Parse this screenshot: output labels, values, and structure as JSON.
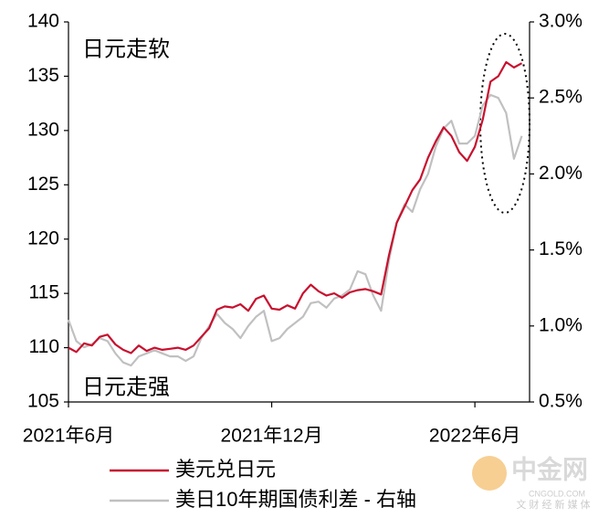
{
  "chart_data": {
    "type": "line",
    "annotations": [
      "日元走软",
      "日元走强"
    ],
    "watermark": [
      "中金网",
      "CNGOLD.COM",
      "文 财 经 新 媒 体"
    ],
    "categories": [
      "2021年6月",
      null,
      null,
      null,
      null,
      null,
      null,
      null,
      null,
      null,
      null,
      null,
      null,
      null,
      null,
      null,
      null,
      null,
      null,
      null,
      null,
      null,
      null,
      null,
      null,
      null,
      "2021年12月",
      null,
      null,
      null,
      null,
      null,
      null,
      null,
      null,
      null,
      null,
      null,
      null,
      null,
      null,
      null,
      null,
      null,
      null,
      null,
      null,
      null,
      null,
      null,
      null,
      null,
      "2022年6月",
      null,
      null,
      null,
      null,
      null,
      null
    ],
    "series": [
      {
        "name": "美元兑日元",
        "color": "#c8102e",
        "axis": "y",
        "values": [
          110.0,
          109.6,
          110.4,
          110.2,
          111.0,
          111.2,
          110.3,
          109.8,
          109.5,
          110.2,
          109.7,
          110.0,
          109.8,
          109.9,
          110.0,
          109.8,
          110.2,
          111.0,
          111.8,
          113.5,
          113.8,
          113.7,
          114.0,
          113.4,
          114.5,
          114.8,
          113.6,
          113.5,
          113.9,
          113.6,
          115.0,
          115.8,
          115.2,
          114.8,
          115.0,
          114.6,
          115.1,
          115.3,
          115.4,
          115.2,
          114.9,
          118.5,
          121.5,
          123.0,
          124.5,
          125.5,
          127.5,
          129.0,
          130.3,
          129.5,
          128.0,
          127.2,
          128.5,
          131.0,
          134.5,
          135.0,
          136.3,
          135.8,
          136.2
        ]
      },
      {
        "name": "美日10年期国债利差 - 右轴",
        "color": "#c0c0c0",
        "axis": "y2",
        "values": [
          1.04,
          0.9,
          0.86,
          0.88,
          0.92,
          0.9,
          0.82,
          0.76,
          0.74,
          0.8,
          0.82,
          0.84,
          0.82,
          0.8,
          0.8,
          0.77,
          0.8,
          0.92,
          1.0,
          1.08,
          1.02,
          0.98,
          0.92,
          1.0,
          1.06,
          1.1,
          0.9,
          0.92,
          0.98,
          1.02,
          1.06,
          1.15,
          1.16,
          1.12,
          1.18,
          1.2,
          1.24,
          1.36,
          1.34,
          1.2,
          1.1,
          1.43,
          1.68,
          1.8,
          1.75,
          1.9,
          2.0,
          2.18,
          2.3,
          2.35,
          2.2,
          2.2,
          2.25,
          2.45,
          2.52,
          2.5,
          2.4,
          2.1,
          2.25
        ]
      }
    ],
    "ylim": [
      105,
      140
    ],
    "yticks": [
      105,
      110,
      115,
      120,
      125,
      130,
      135,
      140
    ],
    "y2lim": [
      0.5,
      3.0
    ],
    "y2ticks": [
      {
        "value": 0.5,
        "label": "0.5%"
      },
      {
        "value": 1.0,
        "label": "1.0%"
      },
      {
        "value": 1.5,
        "label": "1.5%"
      },
      {
        "value": 2.0,
        "label": "2.0%"
      },
      {
        "value": 2.5,
        "label": "2.5%"
      },
      {
        "value": 3.0,
        "label": "3.0%"
      }
    ],
    "grid": false,
    "legend": "bottom"
  }
}
